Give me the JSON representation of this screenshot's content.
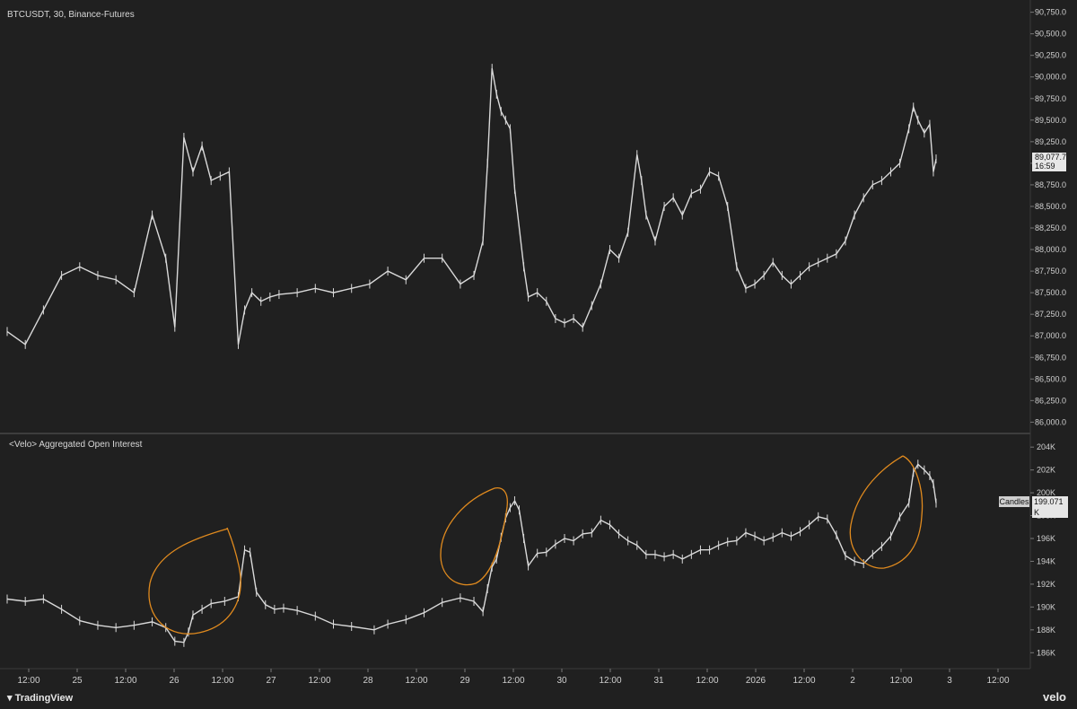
{
  "header": {
    "symbol_title": "BTCUSDT, 30, Binance-Futures",
    "indicator_title": "<Velo> Aggregated Open Interest"
  },
  "badges": {
    "price_value": "89,077.7",
    "price_countdown": "16:59",
    "oi_label": "Candles",
    "oi_value": "199.071 K"
  },
  "footer": {
    "left_brand": "TradingView",
    "right_brand": "velo"
  },
  "colors": {
    "background": "#202020",
    "candles": "#d9d9d9",
    "annotation": "#e08a1e",
    "separator": "#5a5a5a"
  },
  "chart_data": [
    {
      "type": "line",
      "title": "BTCUSDT, 30, Binance-Futures",
      "xlabel": "",
      "ylabel": "",
      "x_ticks": [
        "12:00",
        "25",
        "12:00",
        "26",
        "12:00",
        "27",
        "12:00",
        "28",
        "12:00",
        "29",
        "12:00",
        "30",
        "12:00",
        "31",
        "12:00",
        "2026",
        "12:00",
        "2",
        "12:00",
        "3",
        "12:00"
      ],
      "y_ticks": [
        "90,750.0",
        "90,500.0",
        "90,250.0",
        "90,000.0",
        "89,750.0",
        "89,500.0",
        "89,250.0",
        "89,000.0",
        "88,750.0",
        "88,500.0",
        "88,250.0",
        "88,000.0",
        "87,750.0",
        "87,500.0",
        "87,250.0",
        "87,000.0",
        "86,750.0",
        "86,500.0",
        "86,250.0",
        "86,000.0"
      ],
      "ylim": [
        85900,
        90850
      ],
      "x_index_range": [
        0,
        1129
      ],
      "series": [
        {
          "x": [
            0,
            20,
            40,
            60,
            80,
            100,
            120,
            140,
            160,
            175,
            185,
            195,
            205,
            215,
            225,
            235,
            245,
            255,
            262,
            270,
            280,
            290,
            300,
            320,
            340,
            360,
            380,
            400,
            420,
            440,
            460,
            480,
            500,
            515,
            525,
            530,
            535,
            540,
            545,
            550,
            555,
            560,
            570,
            575,
            585,
            595,
            605,
            615,
            625,
            635,
            645,
            655,
            665,
            675,
            685,
            695,
            700,
            705,
            715,
            725,
            735,
            745,
            755,
            765,
            775,
            785,
            795,
            805,
            815,
            825,
            835,
            845,
            855,
            865,
            875,
            885,
            895,
            905,
            915,
            925,
            935,
            945,
            955,
            965,
            975,
            985,
            995,
            1000,
            1005,
            1012,
            1018,
            1022,
            1025
          ],
          "values": [
            87050,
            86900,
            87300,
            87700,
            87800,
            87700,
            87650,
            87500,
            88400,
            87900,
            87100,
            89300,
            88900,
            89200,
            88800,
            88850,
            88900,
            86900,
            87300,
            87500,
            87400,
            87450,
            87480,
            87500,
            87550,
            87500,
            87550,
            87600,
            87750,
            87650,
            87900,
            87900,
            87600,
            87700,
            88100,
            89000,
            90100,
            89800,
            89600,
            89500,
            89400,
            88700,
            87800,
            87450,
            87500,
            87400,
            87200,
            87150,
            87200,
            87100,
            87350,
            87600,
            88000,
            87900,
            88200,
            89100,
            88800,
            88400,
            88100,
            88500,
            88600,
            88400,
            88650,
            88700,
            88900,
            88850,
            88500,
            87800,
            87550,
            87600,
            87700,
            87850,
            87700,
            87600,
            87700,
            87800,
            87850,
            87900,
            87950,
            88100,
            88400,
            88600,
            88750,
            88800,
            88900,
            89000,
            89400,
            89650,
            89500,
            89350,
            89450,
            88900,
            89050
          ]
        }
      ]
    },
    {
      "type": "line",
      "title": "<Velo> Aggregated Open Interest",
      "xlabel": "",
      "ylabel": "",
      "y_ticks": [
        "204K",
        "202K",
        "200K",
        "198K",
        "196K",
        "194K",
        "192K",
        "190K",
        "188K",
        "186K"
      ],
      "ylim": [
        185000,
        204800
      ],
      "x_index_range": [
        0,
        1129
      ],
      "series": [
        {
          "x": [
            0,
            20,
            40,
            60,
            80,
            100,
            120,
            140,
            160,
            175,
            185,
            195,
            200,
            205,
            215,
            225,
            240,
            255,
            262,
            268,
            275,
            285,
            295,
            305,
            320,
            340,
            360,
            380,
            405,
            420,
            440,
            460,
            480,
            500,
            515,
            525,
            530,
            535,
            540,
            545,
            550,
            555,
            560,
            565,
            570,
            575,
            585,
            595,
            605,
            615,
            625,
            635,
            645,
            655,
            665,
            675,
            685,
            695,
            705,
            715,
            725,
            735,
            745,
            755,
            765,
            775,
            785,
            795,
            805,
            815,
            825,
            835,
            845,
            855,
            865,
            875,
            885,
            895,
            905,
            915,
            925,
            935,
            945,
            955,
            965,
            975,
            985,
            995,
            1000,
            1005,
            1012,
            1018,
            1022,
            1025
          ],
          "values": [
            190700,
            190500,
            190700,
            189800,
            188800,
            188400,
            188200,
            188400,
            188700,
            188200,
            187000,
            186900,
            187800,
            189300,
            189800,
            190300,
            190500,
            190900,
            195000,
            194800,
            191300,
            190200,
            189800,
            189900,
            189700,
            189200,
            188500,
            188300,
            188000,
            188500,
            188900,
            189500,
            190400,
            190800,
            190500,
            189600,
            191600,
            193500,
            194200,
            196100,
            197800,
            198700,
            199300,
            198500,
            196000,
            193600,
            194700,
            194800,
            195500,
            196000,
            195800,
            196400,
            196500,
            197600,
            197200,
            196400,
            195800,
            195400,
            194600,
            194600,
            194400,
            194600,
            194200,
            194600,
            195000,
            195000,
            195400,
            195700,
            195800,
            196500,
            196200,
            195800,
            196100,
            196500,
            196200,
            196600,
            197200,
            197900,
            197700,
            196300,
            194500,
            194000,
            193800,
            194600,
            195300,
            196200,
            197900,
            199100,
            201800,
            202500,
            202000,
            201500,
            200800,
            199100
          ]
        }
      ],
      "annotations": [
        "ellipse around 26 12:00 OI rise",
        "ellipse around 29 OI spike",
        "ellipse around 2 OI spike"
      ]
    }
  ]
}
